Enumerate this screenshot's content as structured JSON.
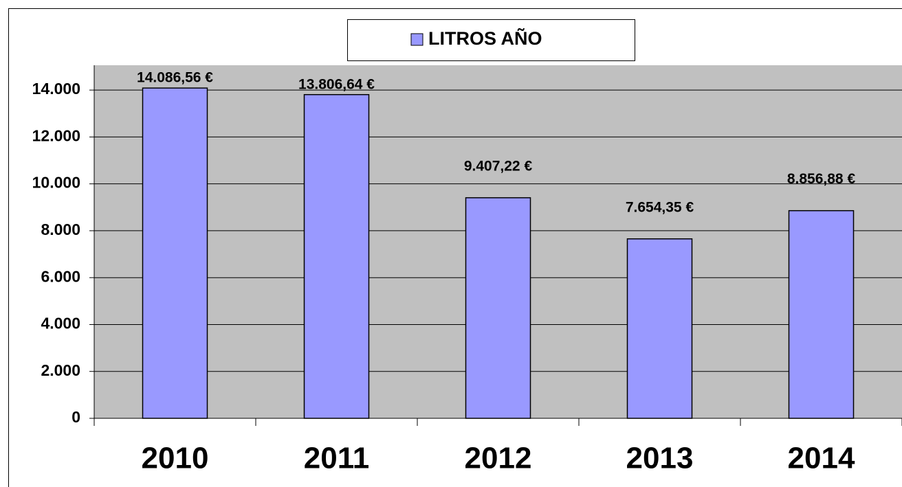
{
  "chart_data": {
    "type": "bar",
    "categories": [
      "2010",
      "2011",
      "2012",
      "2013",
      "2014"
    ],
    "series": [
      {
        "name": "LITROS AÑO",
        "color": "#9999ff",
        "values": [
          14086.56,
          13806.64,
          9407.22,
          7654.35,
          8856.88
        ],
        "value_labels": [
          "14.086,56 €",
          "13.806,64 €",
          "9.407,22 €",
          "7.654,35 €",
          "8.856,88 €"
        ]
      }
    ],
    "ylim": [
      0,
      15000
    ],
    "yticks": [
      0,
      {
        "value": 2000,
        "label": "2.000"
      },
      {
        "value": 4000,
        "label": "4.000"
      },
      {
        "value": 6000,
        "label": "6.000"
      },
      {
        "value": 8000,
        "label": "8.000"
      },
      {
        "value": 10000,
        "label": "10.000"
      },
      {
        "value": 12000,
        "label": "12.000"
      },
      {
        "value": 14000,
        "label": "14.000"
      }
    ],
    "grid": true,
    "legend": "top"
  }
}
